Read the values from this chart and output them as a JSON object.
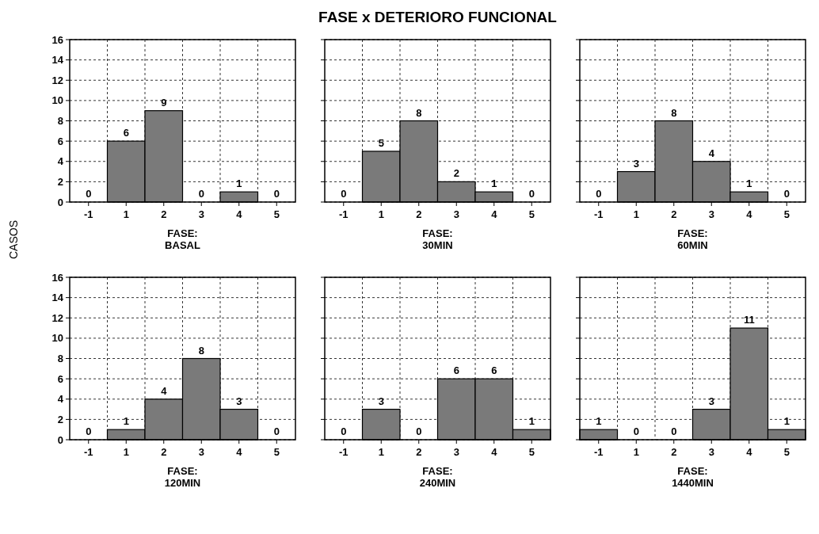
{
  "chart_data": [
    {
      "type": "bar",
      "ylabel": "CASOS",
      "xlabel": "FASE: BASAL",
      "categories": [
        "-1",
        "1",
        "2",
        "3",
        "4",
        "5"
      ],
      "values": [
        0,
        6,
        9,
        0,
        1,
        0
      ],
      "color": "#7a7a7a",
      "ylim": [
        0,
        16
      ],
      "yticks": [
        0,
        2,
        4,
        6,
        8,
        10,
        12,
        14,
        16
      ],
      "grid": true,
      "data_labels": true
    },
    {
      "type": "bar",
      "title": "FASE x DETERIORO FUNCIONAL",
      "xlabel": "FASE: 30MIN",
      "categories": [
        "-1",
        "1",
        "2",
        "3",
        "4",
        "5"
      ],
      "values": [
        0,
        5,
        8,
        2,
        1,
        0
      ],
      "color": "#7a7a7a",
      "ylim": [
        0,
        16
      ],
      "yticks": [
        0,
        2,
        4,
        6,
        8,
        10,
        12,
        14,
        16
      ],
      "grid": true,
      "data_labels": true,
      "tick_labels": "x"
    },
    {
      "type": "bar",
      "xlabel": "FASE: 60MIN",
      "categories": [
        "-1",
        "1",
        "2",
        "3",
        "4",
        "5"
      ],
      "values": [
        0,
        3,
        8,
        4,
        1,
        0
      ],
      "color": "#7a7a7a",
      "ylim": [
        0,
        16
      ],
      "yticks": [
        0,
        2,
        4,
        6,
        8,
        10,
        12,
        14,
        16
      ],
      "grid": true,
      "data_labels": true,
      "tick_labels": "x"
    },
    {
      "type": "bar",
      "xlabel": "FASE: 120MIN",
      "categories": [
        "-1",
        "1",
        "2",
        "3",
        "4",
        "5"
      ],
      "values": [
        0,
        1,
        4,
        8,
        3,
        0
      ],
      "color": "#7a7a7a",
      "ylim": [
        0,
        16
      ],
      "yticks": [
        0,
        2,
        4,
        6,
        8,
        10,
        12,
        14,
        16
      ],
      "grid": true,
      "data_labels": true
    },
    {
      "type": "bar",
      "xlabel": "FASE: 240MIN",
      "categories": [
        "-1",
        "1",
        "2",
        "3",
        "4",
        "5"
      ],
      "values": [
        0,
        3,
        0,
        6,
        6,
        1
      ],
      "color": "#7a7a7a",
      "ylim": [
        0,
        16
      ],
      "yticks": [
        0,
        2,
        4,
        6,
        8,
        10,
        12,
        14,
        16
      ],
      "grid": true,
      "data_labels": true,
      "tick_labels": "x"
    },
    {
      "type": "bar",
      "xlabel": "FASE: 1440MIN",
      "categories": [
        "-1",
        "1",
        "2",
        "3",
        "4",
        "5"
      ],
      "values": [
        1,
        0,
        0,
        3,
        11,
        1
      ],
      "color": "#7a7a7a",
      "ylim": [
        0,
        16
      ],
      "yticks": [
        0,
        2,
        4,
        6,
        8,
        10,
        12,
        14,
        16
      ],
      "grid": true,
      "data_labels": true,
      "tick_labels": "x"
    }
  ]
}
